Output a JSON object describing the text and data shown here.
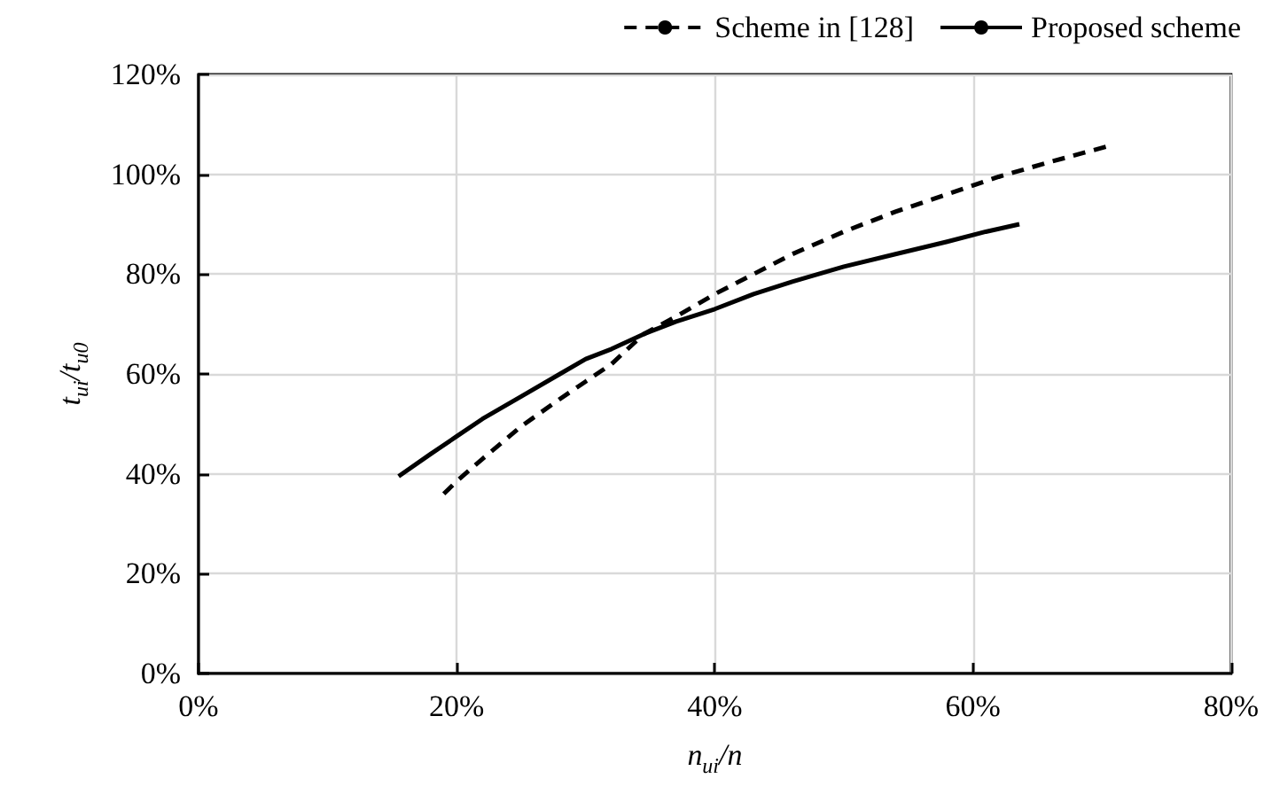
{
  "chart_data": {
    "type": "line",
    "xlabel": "n$_{ui}$/n",
    "ylabel": "t$_{ui}$/t$_{u0}$",
    "series": [
      {
        "name": "Scheme in [128]",
        "color": "#000000",
        "line_style": "dashed",
        "x": [
          19,
          20,
          22,
          25,
          28,
          30,
          32,
          34.5,
          37,
          40,
          43,
          46,
          50,
          54,
          58,
          62,
          66,
          70.3
        ],
        "values": [
          36,
          38.5,
          43,
          49.5,
          55,
          58.5,
          62,
          68,
          71.5,
          76,
          80,
          84,
          88.5,
          92.5,
          96,
          99.5,
          102.5,
          105.5
        ]
      },
      {
        "name": "Proposed scheme",
        "color": "#000000",
        "line_style": "solid",
        "x": [
          15.5,
          18,
          20,
          22,
          25,
          28,
          30,
          32,
          34.5,
          37,
          40,
          43,
          46,
          50,
          54,
          58,
          61,
          63.6
        ],
        "values": [
          39.5,
          44,
          47.5,
          51,
          55.5,
          60,
          63,
          65,
          68,
          70.5,
          73,
          76,
          78.5,
          81.5,
          84,
          86.5,
          88.5,
          90
        ]
      }
    ],
    "xlim": [
      0,
      80
    ],
    "xticks": [
      {
        "value": 0,
        "label": "0%"
      },
      {
        "value": 20,
        "label": "20%"
      },
      {
        "value": 40,
        "label": "40%"
      },
      {
        "value": 60,
        "label": "60%"
      },
      {
        "value": 80,
        "label": "80%"
      }
    ],
    "ylim": [
      0,
      120
    ],
    "yticks": [
      {
        "value": 0,
        "label": "0%"
      },
      {
        "value": 20,
        "label": "20%"
      },
      {
        "value": 40,
        "label": "40%"
      },
      {
        "value": 60,
        "label": "60%"
      },
      {
        "value": 80,
        "label": "80%"
      },
      {
        "value": 100,
        "label": "100%"
      },
      {
        "value": 120,
        "label": "120%"
      }
    ],
    "grid": true,
    "legend": "top right",
    "marker": "none"
  }
}
